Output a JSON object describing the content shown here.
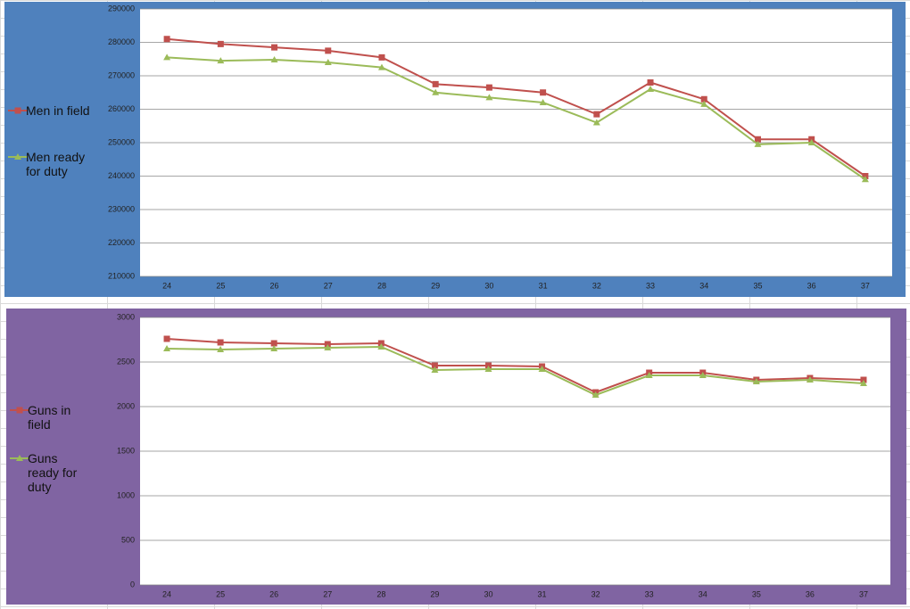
{
  "chart_data": [
    {
      "type": "line",
      "categories": [
        "24",
        "25",
        "26",
        "27",
        "28",
        "29",
        "30",
        "31",
        "32",
        "33",
        "34",
        "35",
        "36",
        "37"
      ],
      "series": [
        {
          "name": "Men in field",
          "color": "#c0504d",
          "marker": "square",
          "values": [
            281000,
            279500,
            278500,
            277500,
            275500,
            267500,
            266500,
            265000,
            258500,
            268000,
            263000,
            251000,
            251000,
            240000
          ]
        },
        {
          "name": "Men ready for duty",
          "color": "#9bbb59",
          "marker": "triangle",
          "values": [
            275500,
            274500,
            274800,
            274000,
            272500,
            265000,
            263500,
            262000,
            256000,
            266000,
            261500,
            249500,
            250000,
            239000
          ]
        }
      ],
      "ylim": [
        210000,
        290000
      ],
      "yticks": [
        210000,
        220000,
        230000,
        240000,
        250000,
        260000,
        270000,
        280000,
        290000
      ],
      "grid": true,
      "background": "#4f81bd"
    },
    {
      "type": "line",
      "categories": [
        "24",
        "25",
        "26",
        "27",
        "28",
        "29",
        "30",
        "31",
        "32",
        "33",
        "34",
        "35",
        "36",
        "37"
      ],
      "series": [
        {
          "name": "Guns in field",
          "color": "#c0504d",
          "marker": "square",
          "values": [
            2760,
            2720,
            2710,
            2700,
            2710,
            2460,
            2460,
            2450,
            2160,
            2380,
            2380,
            2300,
            2320,
            2300
          ]
        },
        {
          "name": "Guns ready for duty",
          "color": "#9bbb59",
          "marker": "triangle",
          "values": [
            2650,
            2640,
            2650,
            2660,
            2670,
            2410,
            2420,
            2420,
            2130,
            2350,
            2350,
            2280,
            2300,
            2260
          ]
        }
      ],
      "ylim": [
        0,
        3000
      ],
      "yticks": [
        0,
        500,
        1000,
        1500,
        2000,
        2500,
        3000
      ],
      "grid": true,
      "background": "#8064a2"
    }
  ]
}
